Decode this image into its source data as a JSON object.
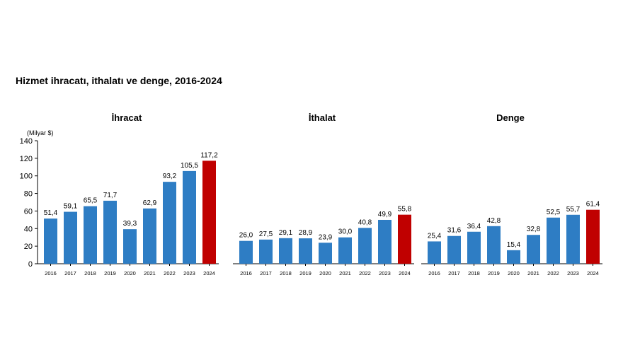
{
  "title": "Hizmet ihracatı, ithalatı ve denge, 2016-2024",
  "unit_label": "(Milyar $)",
  "colors": {
    "bar": "#2e7dc4",
    "highlight": "#c00000",
    "axis": "#000000"
  },
  "chart_data": [
    {
      "type": "bar",
      "title": "İhracat",
      "categories": [
        "2016",
        "2017",
        "2018",
        "2019",
        "2020",
        "2021",
        "2022",
        "2023",
        "2024"
      ],
      "values": [
        51.4,
        59.1,
        65.5,
        71.7,
        39.3,
        62.9,
        93.2,
        105.5,
        117.2
      ],
      "labels": [
        "51,4",
        "59,1",
        "65,5",
        "71,7",
        "39,3",
        "62,9",
        "93,2",
        "105,5",
        "117,2"
      ],
      "ylim": [
        0,
        140
      ],
      "yticks": [
        0,
        20,
        40,
        60,
        80,
        100,
        120,
        140
      ],
      "highlight_index": 8
    },
    {
      "type": "bar",
      "title": "İthalat",
      "categories": [
        "2016",
        "2017",
        "2018",
        "2019",
        "2020",
        "2021",
        "2022",
        "2023",
        "2024"
      ],
      "values": [
        26.0,
        27.5,
        29.1,
        28.9,
        23.9,
        30.0,
        40.8,
        49.9,
        55.8
      ],
      "labels": [
        "26,0",
        "27,5",
        "29,1",
        "28,9",
        "23,9",
        "30,0",
        "40,8",
        "49,9",
        "55,8"
      ],
      "ylim": [
        0,
        140
      ],
      "highlight_index": 8
    },
    {
      "type": "bar",
      "title": "Denge",
      "categories": [
        "2016",
        "2017",
        "2018",
        "2019",
        "2020",
        "2021",
        "2022",
        "2023",
        "2024"
      ],
      "values": [
        25.4,
        31.6,
        36.4,
        42.8,
        15.4,
        32.8,
        52.5,
        55.7,
        61.4
      ],
      "labels": [
        "25,4",
        "31,6",
        "36,4",
        "42,8",
        "15,4",
        "32,8",
        "52,5",
        "55,7",
        "61,4"
      ],
      "ylim": [
        0,
        140
      ],
      "highlight_index": 8
    }
  ]
}
